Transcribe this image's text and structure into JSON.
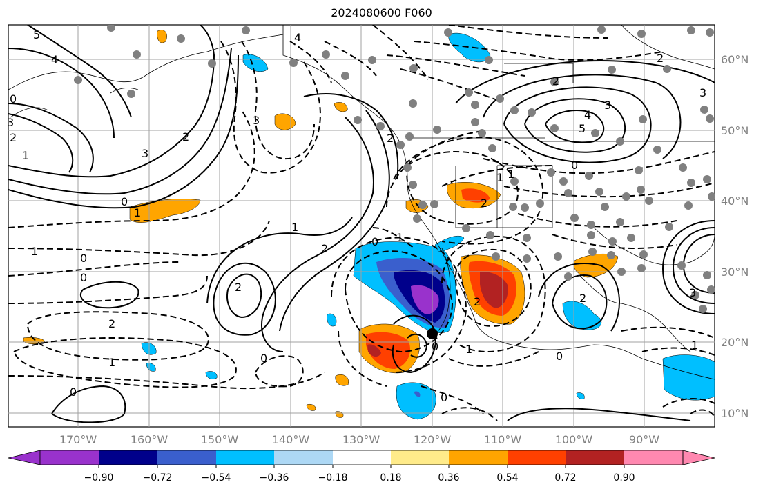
{
  "title": "2024080600 F060",
  "latitude_labels": [
    "60°N",
    "50°N",
    "40°N",
    "30°N",
    "20°N",
    "10°N"
  ],
  "longitude_labels": [
    "170°W",
    "160°W",
    "150°W",
    "140°W",
    "130°W",
    "120°W",
    "110°W",
    "100°W",
    "90°W"
  ],
  "colorbar": {
    "tick_labels": [
      "−0.90",
      "−0.72",
      "−0.54",
      "−0.36",
      "−0.18",
      "0.18",
      "0.36",
      "0.54",
      "0.72",
      "0.90"
    ],
    "colors": [
      "#9932cc",
      "#00008b",
      "#3a5fcd",
      "#00bfff",
      "#add8f5",
      "#ffffff",
      "#ffeb8a",
      "#ffa500",
      "#ff4000",
      "#b22222",
      "#ff88b0"
    ]
  },
  "contour_labels": [
    "5",
    "4",
    "3",
    "2",
    "1",
    "0",
    "0",
    "1",
    "4",
    "3",
    "2",
    "1",
    "0",
    "0",
    "1",
    "2",
    "1",
    "2",
    "3",
    "0",
    "0",
    "2",
    "1",
    "0",
    "1",
    "2",
    "0",
    "2",
    "3",
    "2",
    "5",
    "4",
    "3",
    "2",
    "1",
    "0",
    "1",
    "2",
    "3",
    "2",
    "0",
    "1",
    "0"
  ],
  "station_marker": "black-dot",
  "colors": {
    "contour_line": "#000000",
    "grid": "#a0a0a0",
    "axis_label": "#808080",
    "station": "#808080"
  }
}
